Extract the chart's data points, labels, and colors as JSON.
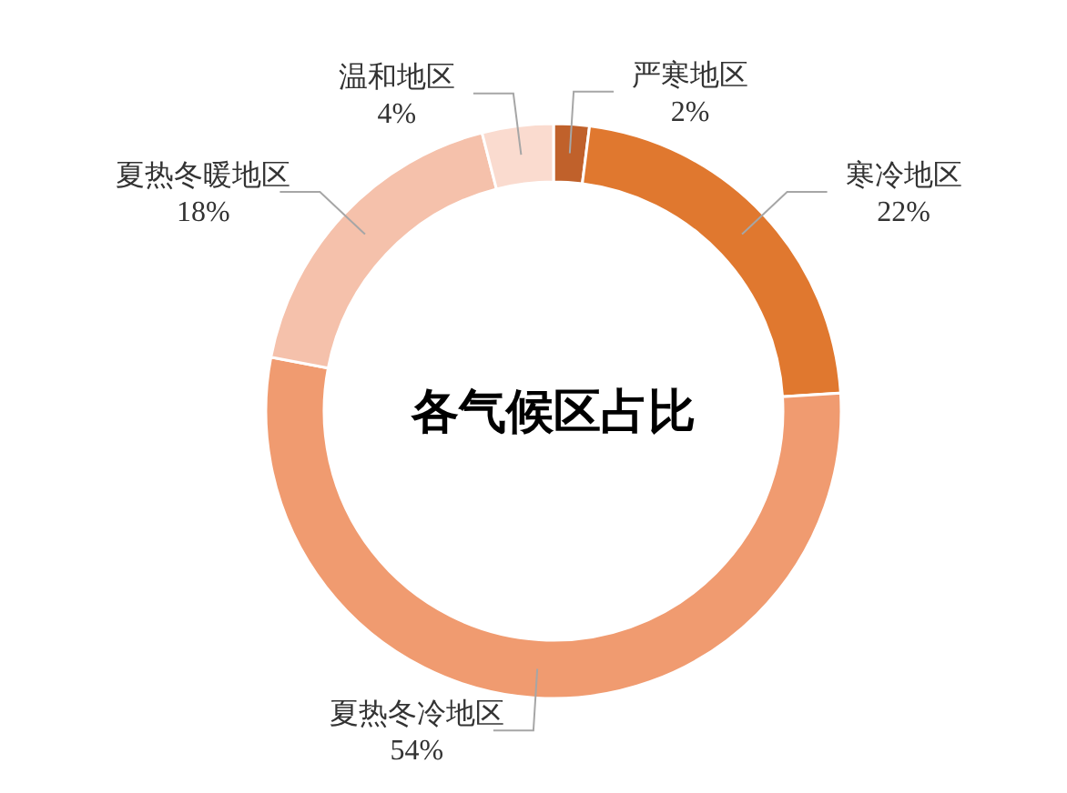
{
  "chart_data": {
    "type": "donut",
    "title": "各气候区占比",
    "categories": [
      "严寒地区",
      "寒冷地区",
      "夏热冬冷地区",
      "夏热冬暖地区",
      "温和地区"
    ],
    "values": [
      2,
      22,
      54,
      18,
      4
    ],
    "colors": [
      "#c0612b",
      "#e0782f",
      "#f09b70",
      "#f5c1ab",
      "#fadbcf"
    ],
    "value_labels": [
      "2%",
      "22%",
      "54%",
      "18%",
      "4%"
    ]
  }
}
